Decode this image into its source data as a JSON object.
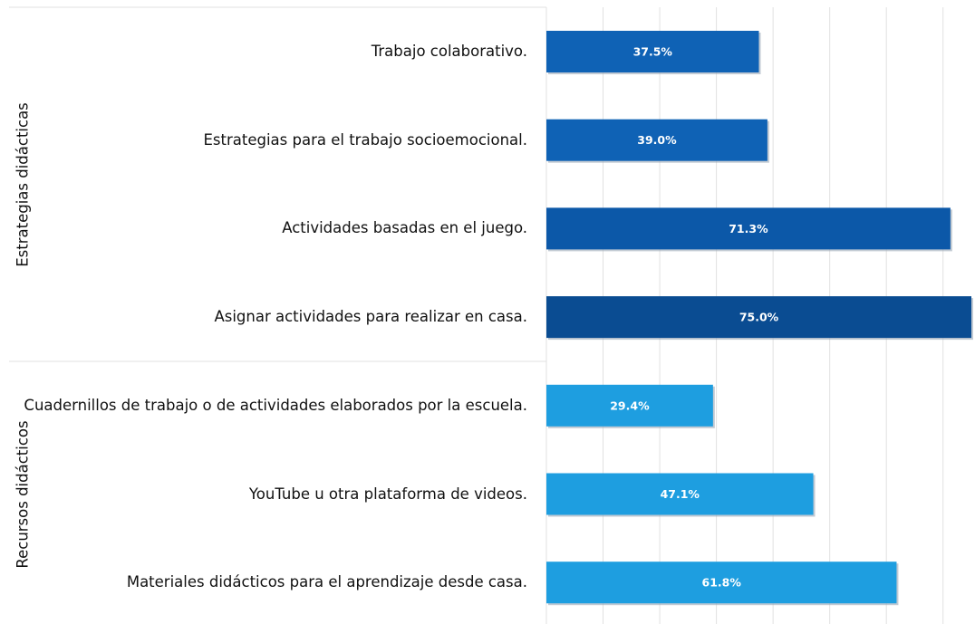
{
  "chart_data": {
    "type": "bar",
    "orientation": "horizontal",
    "groups": [
      {
        "name": "Estrategias didácticas",
        "categories": [
          "Trabajo colaborativo.",
          "Estrategias para el trabajo socioemocional.",
          "Actividades basadas en el juego.",
          "Asignar actividades para realizar en casa."
        ],
        "values": [
          37.5,
          39.0,
          71.3,
          75.0
        ],
        "value_labels": [
          "37.5%",
          "39.0%",
          "71.3%",
          "75.0%"
        ],
        "colors": [
          "#0f62b5",
          "#0f62b5",
          "#0c58a8",
          "#0a4c92"
        ]
      },
      {
        "name": "Recursos didácticos",
        "categories": [
          "Cuadernillos de trabajo o de actividades elaborados por la escuela.",
          "YouTube u otra plataforma de videos.",
          "Materiales didácticos para el aprendizaje desde casa."
        ],
        "values": [
          29.4,
          47.1,
          61.8
        ],
        "value_labels": [
          "29.4%",
          "47.1%",
          "61.8%"
        ],
        "colors": [
          "#1e9ee0",
          "#1e9ee0",
          "#1e9ee0"
        ]
      }
    ],
    "xlim": [
      0,
      75
    ],
    "xticks": [
      0,
      10,
      20,
      30,
      40,
      50,
      60,
      70
    ],
    "grid": true
  }
}
